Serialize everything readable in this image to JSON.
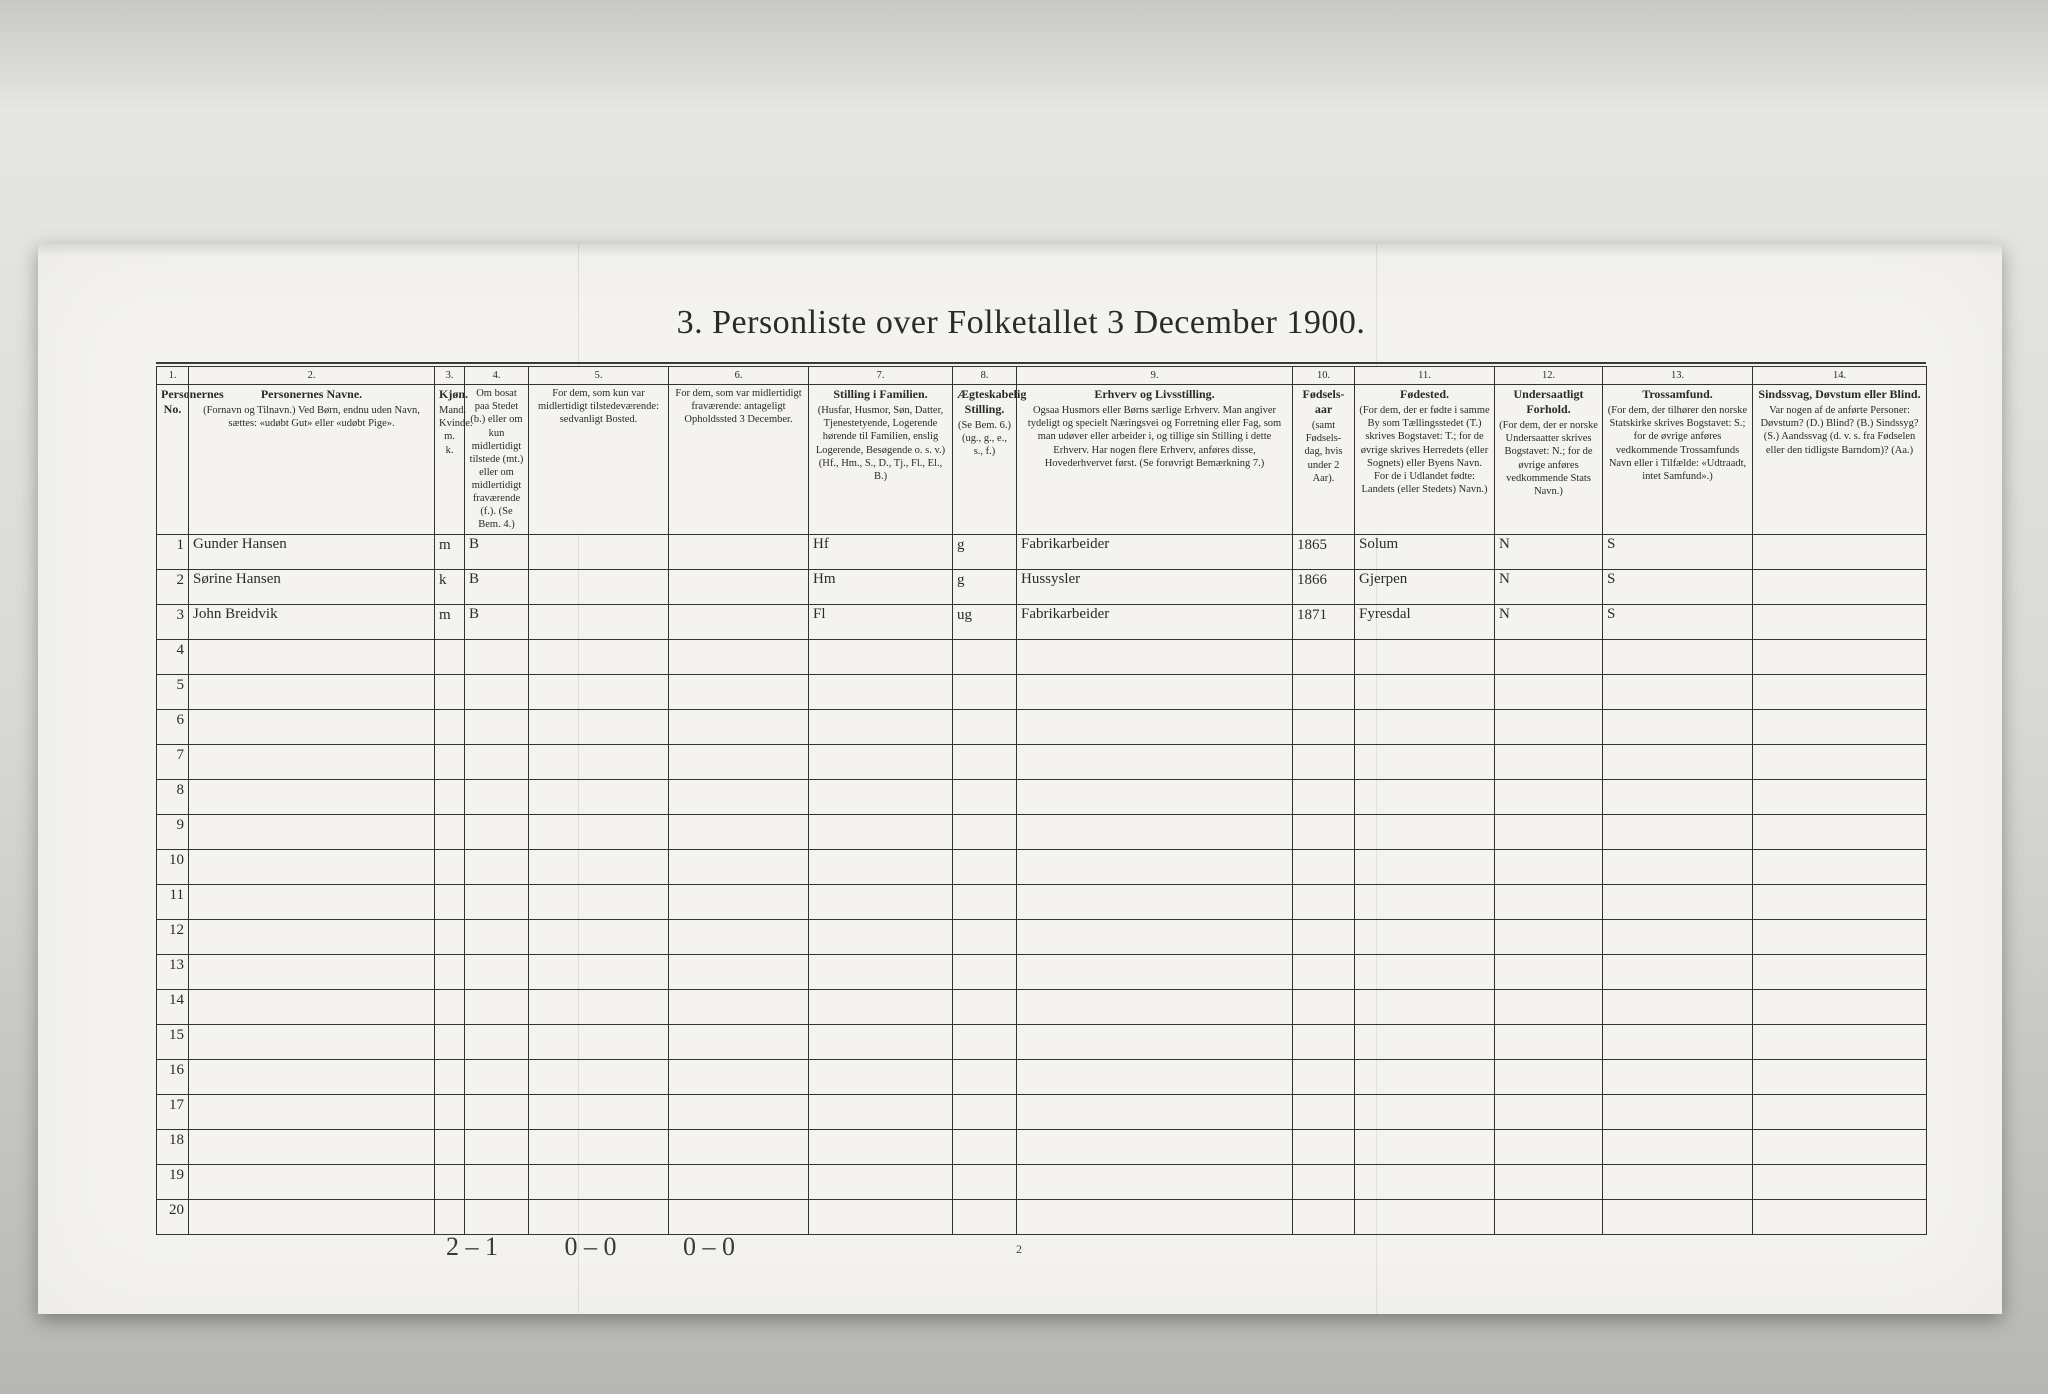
{
  "title": "3.  Personliste over Folketallet 3 December 1900.",
  "page_number": "2",
  "colors": {
    "paper": "#f4f3ef",
    "ink": "#2a2a2a",
    "rule": "#333333"
  },
  "columns": [
    {
      "no": "1.",
      "heading": "Personernes No."
    },
    {
      "no": "2.",
      "heading": "Personernes Navne.",
      "sub": "(Fornavn og Tilnavn.)\nVed Børn, endnu uden Navn, sættes: «udøbt Gut» eller «udøbt Pige»."
    },
    {
      "no": "3.",
      "heading": "Kjøn.",
      "sub": "Mand.\nKvinde.\nm.  k."
    },
    {
      "no": "4.",
      "heading": "",
      "sub": "Om bosat paa Stedet (b.) eller om kun midlertidigt tilstede (mt.) eller om midlertidigt fraværende (f.).\n(Se Bem. 4.)"
    },
    {
      "no": "5.",
      "heading": "",
      "sub": "For dem, som kun var midlertidigt tilstedeværende:\nsedvanligt Bosted."
    },
    {
      "no": "6.",
      "heading": "",
      "sub": "For dem, som var midlertidigt fraværende:\nantageligt Opholdssted 3 December."
    },
    {
      "no": "7.",
      "heading": "Stilling i Familien.",
      "sub": "(Husfar, Husmor, Søn, Datter, Tjenestetyende, Logerende hørende til Familien, enslig Logerende, Besøgende o. s. v.)\n(Hf., Hm., S., D., Tj., Fl., El., B.)"
    },
    {
      "no": "8.",
      "heading": "Ægteskabelig Stilling.",
      "sub": "(Se Bem. 6.)\n(ug., g., e., s., f.)"
    },
    {
      "no": "9.",
      "heading": "Erhverv og Livsstilling.",
      "sub": "Ogsaa Husmors eller Børns særlige Erhverv. Man angiver tydeligt og specielt Næringsvei og Forretning eller Fag, som man udøver eller arbeider i, og tillige sin Stilling i dette Erhverv. Har nogen flere Erhverv, anføres disse, Hovederhvervet først.\n(Se forøvrigt Bemærkning 7.)"
    },
    {
      "no": "10.",
      "heading": "Fødsels-aar",
      "sub": "(samt Fødsels-dag, hvis under 2 Aar)."
    },
    {
      "no": "11.",
      "heading": "Fødested.",
      "sub": "(For dem, der er fødte i samme By som Tællingsstedet (T.) skrives Bogstavet: T.; for de øvrige skrives Herredets (eller Sognets) eller Byens Navn. For de i Udlandet fødte: Landets (eller Stedets) Navn.)"
    },
    {
      "no": "12.",
      "heading": "Undersaatligt Forhold.",
      "sub": "(For dem, der er norske Undersaatter skrives Bogstavet: N.; for de øvrige anføres vedkommende Stats Navn.)"
    },
    {
      "no": "13.",
      "heading": "Trossamfund.",
      "sub": "(For dem, der tilhører den norske Statskirke skrives Bogstavet: S.; for de øvrige anføres vedkommende Trossamfunds Navn eller i Tilfælde: «Udtraadt, intet Samfund».)"
    },
    {
      "no": "14.",
      "heading": "Sindssvag, Døvstum eller Blind.",
      "sub": "Var nogen af de anførte Personer: Døvstum? (D.)  Blind? (B.)  Sindssyg? (S.)  Aandssvag (d. v. s. fra Fødselen eller den tidligste Barndom)? (Aa.)"
    }
  ],
  "rows": [
    {
      "n": "1",
      "name": "Gunder Hansen",
      "sex": "m",
      "res": "B",
      "c5": "",
      "c6": "",
      "fam": "Hf",
      "civ": "g",
      "occ": "Fabrikarbeider",
      "year": "1865",
      "birthplace": "Solum",
      "nat": "N",
      "rel": "S",
      "c14": ""
    },
    {
      "n": "2",
      "name": "Sørine Hansen",
      "sex": "k",
      "res": "B",
      "c5": "",
      "c6": "",
      "fam": "Hm",
      "civ": "g",
      "occ": "Hussysler",
      "year": "1866",
      "birthplace": "Gjerpen",
      "nat": "N",
      "rel": "S",
      "c14": ""
    },
    {
      "n": "3",
      "name": "John Breidvik",
      "sex": "m",
      "res": "B",
      "c5": "",
      "c6": "",
      "fam": "Fl",
      "civ": "ug",
      "occ": "Fabrikarbeider",
      "year": "1871",
      "birthplace": "Fyresdal",
      "nat": "N",
      "rel": "S",
      "c14": ""
    }
  ],
  "empty_rows": [
    "4",
    "5",
    "6",
    "7",
    "8",
    "9",
    "10",
    "11",
    "12",
    "13",
    "14",
    "15",
    "16",
    "17",
    "18",
    "19",
    "20"
  ],
  "footer_counts": [
    "2 – 1",
    "0 – 0",
    "0 – 0"
  ]
}
